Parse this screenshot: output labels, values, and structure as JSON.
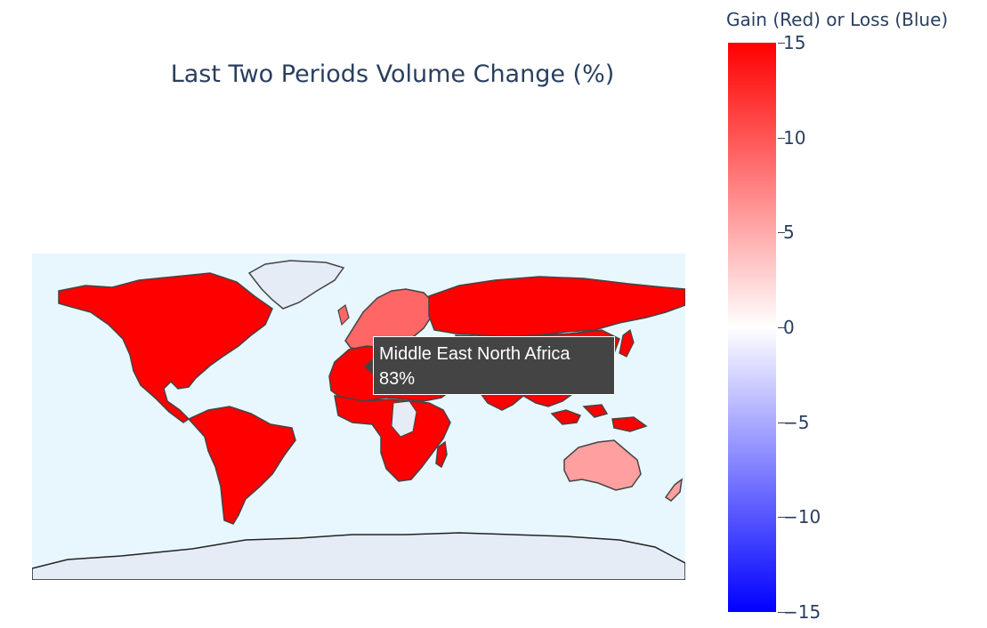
{
  "title": "Last Two Periods Volume Change (%)",
  "colorbar": {
    "title": "Gain (Red) or Loss (Blue)",
    "range": [
      -15,
      15
    ],
    "colors": {
      "high": "#ff0000",
      "mid": "#ffffff",
      "low": "#0000ff"
    },
    "ticks": [
      {
        "value": 15,
        "label": "15"
      },
      {
        "value": 10,
        "label": "10"
      },
      {
        "value": 5,
        "label": "5"
      },
      {
        "value": 0,
        "label": "0"
      },
      {
        "value": -5,
        "label": "−5"
      },
      {
        "value": -10,
        "label": "−10"
      },
      {
        "value": -15,
        "label": "−15"
      }
    ]
  },
  "map": {
    "ocean_color": "#e8f7fd",
    "nodata_color": "#e5ecf6",
    "border_color": "#444444",
    "regions": [
      {
        "name": "North America",
        "color": "#ff0000"
      },
      {
        "name": "Latin America",
        "color": "#ff0000"
      },
      {
        "name": "Middle East North Africa",
        "color": "#ff0000",
        "value": 83
      },
      {
        "name": "Sub-Saharan Africa",
        "color": "#ff0000"
      },
      {
        "name": "Europe",
        "color": "#ff6666"
      },
      {
        "name": "Russia & Central Asia",
        "color": "#ff0000"
      },
      {
        "name": "Asia",
        "color": "#ff0000"
      },
      {
        "name": "Oceania",
        "color": "#ff9f9f"
      },
      {
        "name": "Greenland",
        "color": "#e5ecf6"
      },
      {
        "name": "Antarctica",
        "color": "#e5ecf6"
      }
    ]
  },
  "hover": {
    "name": "Middle East North Africa",
    "value": "83%"
  }
}
